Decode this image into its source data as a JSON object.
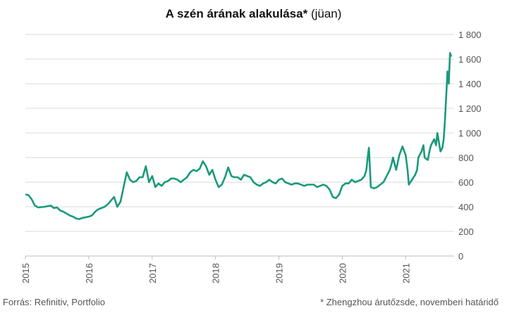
{
  "title": {
    "bold": "A szén árának alakulása*",
    "normal": "(jüan)"
  },
  "footer": {
    "source": "Forrás: Refinitiv, Portfolio",
    "note": "* Zhengzhou árutőzsde, novemberi határidő"
  },
  "colors": {
    "line": "#1a9a7b",
    "grid": "#d9d9d9"
  },
  "chart_data": {
    "type": "line",
    "title": "A szén árának alakulása* (jüan)",
    "xlabel": "",
    "ylabel": "",
    "ylim": [
      0,
      1800
    ],
    "xlim": [
      2015.0,
      2021.72
    ],
    "y_ticks": [
      0,
      200,
      400,
      600,
      800,
      1000,
      1200,
      1400,
      1600,
      1800
    ],
    "y_tick_labels": [
      "0",
      "200",
      "400",
      "600",
      "800",
      "1 000",
      "1 200",
      "1 400",
      "1 600",
      "1 800"
    ],
    "x_ticks": [
      2015,
      2016,
      2017,
      2018,
      2019,
      2020,
      2021
    ],
    "x_tick_labels": [
      "2015",
      "2016",
      "2017",
      "2018",
      "2019",
      "2020",
      "2021"
    ],
    "grid": true,
    "series": [
      {
        "x": [
          2015.0,
          2015.05,
          2015.1,
          2015.15,
          2015.2,
          2015.3,
          2015.4,
          2015.45,
          2015.5,
          2015.55,
          2015.6,
          2015.65,
          2015.7,
          2015.75,
          2015.8,
          2015.85,
          2015.9,
          2016.0,
          2016.05,
          2016.1,
          2016.15,
          2016.2,
          2016.25,
          2016.3,
          2016.35,
          2016.4,
          2016.45,
          2016.5,
          2016.55,
          2016.6,
          2016.65,
          2016.7,
          2016.75,
          2016.8,
          2016.85,
          2016.9,
          2016.95,
          2017.0,
          2017.05,
          2017.1,
          2017.15,
          2017.2,
          2017.25,
          2017.3,
          2017.35,
          2017.4,
          2017.45,
          2017.5,
          2017.55,
          2017.6,
          2017.65,
          2017.7,
          2017.75,
          2017.8,
          2017.85,
          2017.9,
          2017.95,
          2018.0,
          2018.05,
          2018.1,
          2018.15,
          2018.2,
          2018.25,
          2018.3,
          2018.35,
          2018.4,
          2018.45,
          2018.5,
          2018.55,
          2018.6,
          2018.65,
          2018.7,
          2018.75,
          2018.8,
          2018.85,
          2018.9,
          2018.95,
          2019.0,
          2019.05,
          2019.1,
          2019.15,
          2019.2,
          2019.25,
          2019.3,
          2019.35,
          2019.4,
          2019.45,
          2019.5,
          2019.55,
          2019.6,
          2019.65,
          2019.7,
          2019.75,
          2019.8,
          2019.85,
          2019.9,
          2019.95,
          2020.0,
          2020.05,
          2020.1,
          2020.15,
          2020.2,
          2020.25,
          2020.3,
          2020.35,
          2020.38,
          2020.4,
          2020.42,
          2020.45,
          2020.5,
          2020.55,
          2020.6,
          2020.65,
          2020.7,
          2020.75,
          2020.78,
          2020.8,
          2020.85,
          2020.9,
          2020.95,
          2021.0,
          2021.03,
          2021.05,
          2021.1,
          2021.15,
          2021.18,
          2021.2,
          2021.25,
          2021.28,
          2021.3,
          2021.35,
          2021.38,
          2021.4,
          2021.45,
          2021.48,
          2021.5,
          2021.55,
          2021.58,
          2021.6,
          2021.62,
          2021.64,
          2021.66,
          2021.68,
          2021.7,
          2021.72
        ],
        "y": [
          500,
          495,
          460,
          410,
          395,
          400,
          410,
          390,
          395,
          370,
          360,
          345,
          330,
          320,
          305,
          300,
          310,
          320,
          330,
          360,
          380,
          390,
          400,
          420,
          450,
          480,
          400,
          440,
          560,
          680,
          620,
          600,
          610,
          640,
          640,
          730,
          600,
          650,
          560,
          590,
          570,
          600,
          610,
          630,
          630,
          620,
          600,
          620,
          640,
          680,
          700,
          690,
          710,
          770,
          730,
          660,
          700,
          620,
          560,
          580,
          640,
          720,
          650,
          640,
          640,
          620,
          660,
          650,
          640,
          600,
          580,
          570,
          590,
          600,
          620,
          600,
          590,
          620,
          630,
          600,
          590,
          580,
          590,
          590,
          580,
          570,
          580,
          580,
          580,
          560,
          570,
          580,
          570,
          540,
          480,
          470,
          500,
          570,
          590,
          590,
          620,
          600,
          610,
          620,
          650,
          700,
          800,
          880,
          560,
          550,
          560,
          580,
          600,
          650,
          700,
          750,
          800,
          700,
          820,
          890,
          820,
          700,
          580,
          620,
          660,
          700,
          800,
          850,
          900,
          800,
          780,
          860,
          900,
          950,
          900,
          1000,
          850,
          880,
          950,
          1100,
          1300,
          1500,
          1400,
          1650,
          1620
        ]
      }
    ]
  }
}
